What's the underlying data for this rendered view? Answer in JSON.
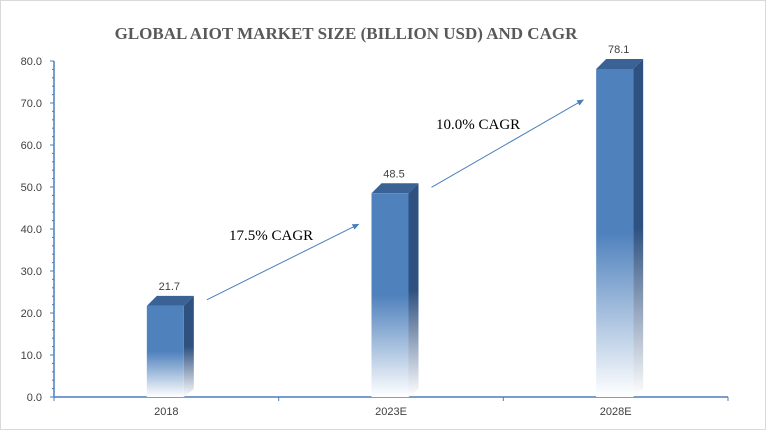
{
  "chart_data": {
    "type": "bar",
    "title": "GLOBAL AIOT MARKET SIZE  (BILLION USD) AND CAGR",
    "categories": [
      "2018",
      "2023E",
      "2028E"
    ],
    "values": [
      21.7,
      48.5,
      78.1
    ],
    "value_labels": [
      "21.7",
      "48.5",
      "78.1"
    ],
    "ylim": [
      0,
      80
    ],
    "yticks": [
      "0.0",
      "10.0",
      "20.0",
      "30.0",
      "40.0",
      "50.0",
      "60.0",
      "70.0",
      "80.0"
    ],
    "xlabel": "",
    "ylabel": "",
    "grid": false,
    "legend": "none",
    "bar_style": "3d gradient",
    "bar_color": "#4f81bd",
    "bar_side_color": "#2f5180",
    "annotations": [
      {
        "text": "17.5% CAGR",
        "from": "2018",
        "to": "2023E"
      },
      {
        "text": "10.0% CAGR",
        "from": "2023E",
        "to": "2028E"
      }
    ]
  }
}
